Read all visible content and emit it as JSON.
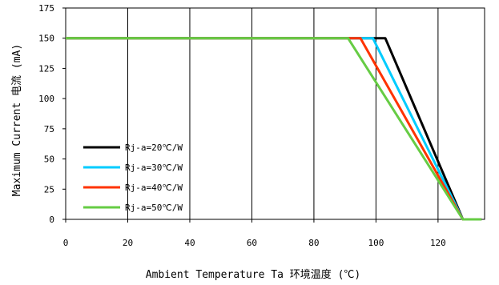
{
  "chart_data": {
    "type": "line",
    "title": "",
    "xlabel": "Ambient Temperature Ta 环境温度 (℃)",
    "ylabel": "Maximum Current 电流 (mA)",
    "xlim": [
      0,
      135
    ],
    "ylim": [
      0,
      175
    ],
    "xticks": [
      0,
      20,
      40,
      60,
      80,
      100,
      120
    ],
    "yticks": [
      0,
      25,
      50,
      75,
      100,
      125,
      150,
      175
    ],
    "grid": "vertical",
    "legend_placement": "bottom-left",
    "series": [
      {
        "name": "Rj-a=20℃/W",
        "color": "#000000",
        "x": [
          0,
          103,
          128,
          134
        ],
        "y": [
          150,
          150,
          0,
          0
        ]
      },
      {
        "name": "Rj-a=30℃/W",
        "color": "#00ccff",
        "x": [
          0,
          99,
          128,
          134
        ],
        "y": [
          150,
          150,
          0,
          0
        ]
      },
      {
        "name": "Rj-a=40℃/W",
        "color": "#ff3300",
        "x": [
          0,
          95,
          128,
          134
        ],
        "y": [
          150,
          150,
          0,
          0
        ]
      },
      {
        "name": "Rj-a=50℃/W",
        "color": "#66cc44",
        "x": [
          0,
          91,
          128,
          134
        ],
        "y": [
          150,
          150,
          0,
          0
        ]
      }
    ]
  }
}
